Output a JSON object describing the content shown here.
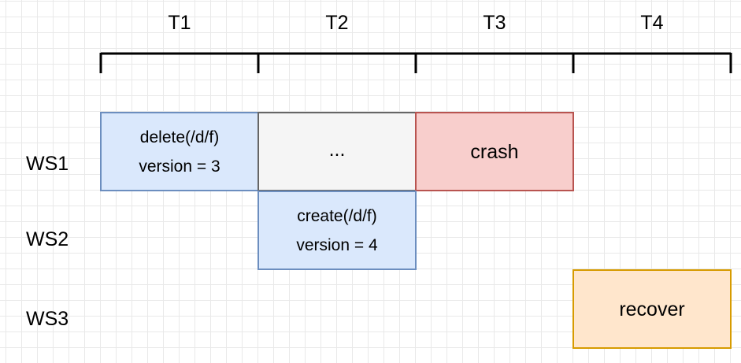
{
  "time_labels": [
    "T1",
    "T2",
    "T3",
    "T4"
  ],
  "row_labels": [
    "WS1",
    "WS2",
    "WS3"
  ],
  "boxes": {
    "ws1_delete": {
      "line1": "delete(/d/f)",
      "line2": "version = 3"
    },
    "ws1_ellipsis": {
      "text": "..."
    },
    "ws1_crash": {
      "text": "crash"
    },
    "ws2_create": {
      "line1": "create(/d/f)",
      "line2": "version = 4"
    },
    "ws3_recover": {
      "text": "recover"
    }
  },
  "colors": {
    "blue_fill": "#dae8fc",
    "blue_stroke": "#6c8ebf",
    "gray_fill": "#f5f5f5",
    "gray_stroke": "#666666",
    "red_fill": "#f8cecc",
    "red_stroke": "#b85450",
    "orange_fill": "#ffe6cc",
    "orange_stroke": "#d79b00",
    "timeline": "#000000"
  }
}
